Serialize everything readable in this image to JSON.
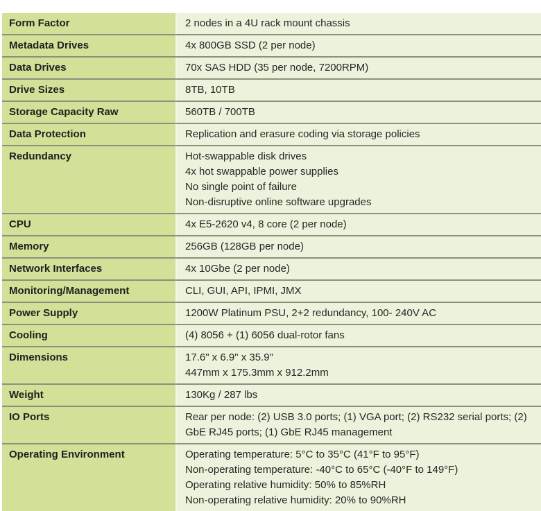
{
  "colors": {
    "label_bg": "#d2e098",
    "value_bg": "#ecf3dc",
    "row_separator": "#8d917c",
    "column_divider": "#f4f7e9",
    "text": "#262626",
    "page_bg": "#ffffff"
  },
  "table": {
    "rows": [
      {
        "label": "Form Factor",
        "lines": [
          "2 nodes in a 4U rack mount chassis"
        ]
      },
      {
        "label": "Metadata Drives",
        "lines": [
          "4x 800GB SSD (2 per node)"
        ]
      },
      {
        "label": "Data Drives",
        "lines": [
          "70x SAS HDD (35 per node, 7200RPM)"
        ]
      },
      {
        "label": "Drive Sizes",
        "lines": [
          "8TB, 10TB"
        ]
      },
      {
        "label": "Storage Capacity Raw",
        "lines": [
          "560TB / 700TB"
        ]
      },
      {
        "label": "Data Protection",
        "lines": [
          "Replication and erasure coding via storage policies"
        ]
      },
      {
        "label": "Redundancy",
        "lines": [
          "Hot-swappable disk drives",
          "4x hot swappable power supplies",
          "No single point of failure",
          "Non-disruptive online software upgrades"
        ]
      },
      {
        "label": "CPU",
        "lines": [
          "4x E5-2620 v4, 8 core (2 per node)"
        ]
      },
      {
        "label": "Memory",
        "lines": [
          "256GB (128GB per node)"
        ]
      },
      {
        "label": "Network Interfaces",
        "lines": [
          "4x 10Gbe (2 per node)"
        ]
      },
      {
        "label": "Monitoring/Management",
        "lines": [
          "CLI, GUI, API, IPMI, JMX"
        ]
      },
      {
        "label": "Power Supply",
        "lines": [
          "1200W Platinum PSU, 2+2 redundancy, 100- 240V AC"
        ]
      },
      {
        "label": "Cooling",
        "lines": [
          "(4) 8056 + (1) 6056 dual-rotor fans"
        ]
      },
      {
        "label": "Dimensions",
        "lines": [
          "17.6\" x 6.9\" x 35.9\"",
          "447mm x 175.3mm x 912.2mm"
        ]
      },
      {
        "label": "Weight",
        "lines": [
          "130Kg / 287 lbs"
        ]
      },
      {
        "label": "IO Ports",
        "lines": [
          "Rear per node: (2) USB 3.0 ports; (1) VGA port; (2) RS232 serial ports; (2) GbE RJ45 ports; (1) GbE RJ45 management"
        ]
      },
      {
        "label": "Operating Environment",
        "lines": [
          "Operating temperature: 5°C to 35°C (41°F to 95°F)",
          "Non-operating temperature: -40°C to 65°C (-40°F to 149°F)",
          "Operating relative humidity: 50% to 85%RH",
          "Non-operating relative humidity: 20% to 90%RH"
        ]
      }
    ]
  }
}
